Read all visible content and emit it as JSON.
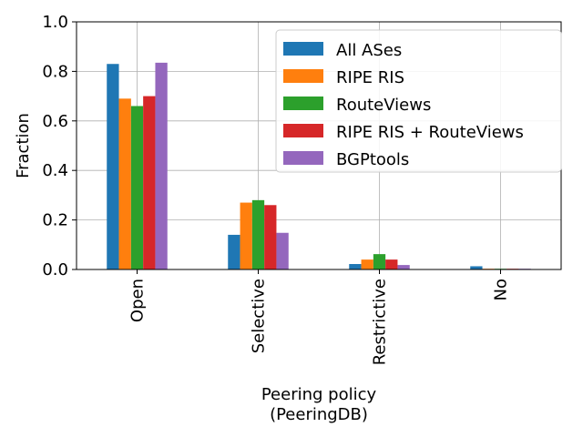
{
  "chart_data": {
    "type": "bar",
    "xlabel": [
      "Peering policy",
      "(PeeringDB)"
    ],
    "ylabel": "Fraction",
    "ylim": [
      0,
      1.0
    ],
    "yticks": [
      "0.0",
      "0.2",
      "0.4",
      "0.6",
      "0.8",
      "1.0"
    ],
    "categories": [
      "Open",
      "Selective",
      "Restrictive",
      "No"
    ],
    "grid": true,
    "legend_position": "top-right",
    "series": [
      {
        "name": "All ASes",
        "color": "#1f77b4",
        "values": [
          0.83,
          0.14,
          0.022,
          0.013
        ]
      },
      {
        "name": "RIPE RIS",
        "color": "#ff7f0e",
        "values": [
          0.69,
          0.27,
          0.04,
          0.003
        ]
      },
      {
        "name": "RouteViews",
        "color": "#2ca02c",
        "values": [
          0.66,
          0.28,
          0.062,
          0.003
        ]
      },
      {
        "name": "RIPE RIS + RouteViews",
        "color": "#d62728",
        "values": [
          0.7,
          0.26,
          0.04,
          0.003
        ]
      },
      {
        "name": "BGPtools",
        "color": "#9467bd",
        "values": [
          0.835,
          0.148,
          0.018,
          0.003
        ]
      }
    ]
  }
}
